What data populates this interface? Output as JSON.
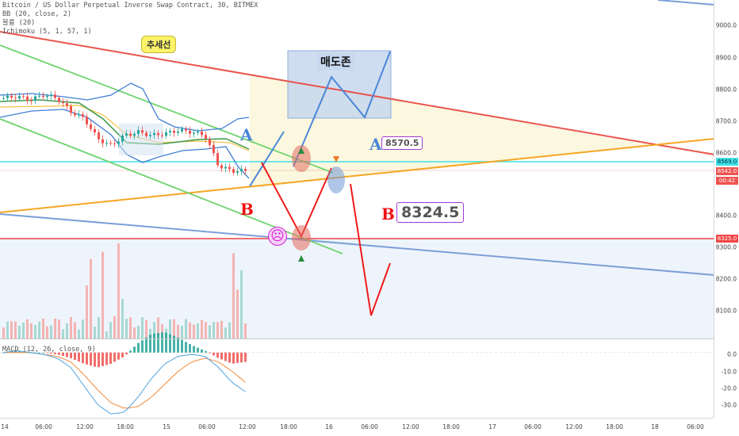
{
  "header": {
    "symbol_line": "Bitcoin / US Dollar Perpetual Inverse Swap Contract, 30, BITMEX",
    "bb_line": "BB (20, close, 2)",
    "volume_line": "볼륨 (20)",
    "ichimoku_line": "Ichimoku (5, 1, 57, 1)",
    "macd_line": "MACD (12, 26, close, 9)"
  },
  "annotations": {
    "trend_label": "추세선",
    "sell_zone_label": "매도존",
    "label_a_top": "A",
    "label_a_right": "A",
    "label_b_left": "B",
    "label_b_right": "B",
    "price_a": "8570.5",
    "price_b": "8324.5",
    "sad_face": "☹"
  },
  "price_axis": {
    "ticks": [
      "9000.0",
      "8900.0",
      "8800.0",
      "8700.0",
      "8600.0",
      "8400.0",
      "8300.0",
      "8200.0",
      "8100.0"
    ],
    "tags": {
      "cyan": "8569.0",
      "red_price": "8542.0",
      "countdown": "00:42",
      "support": "8325.0"
    }
  },
  "macd_axis": {
    "ticks": [
      "0.0",
      "-10.0",
      "-20.0",
      "-30.0"
    ]
  },
  "time_axis": {
    "ticks": [
      "14",
      "06:00",
      "12:00",
      "18:00",
      "15",
      "06:00",
      "12:00",
      "18:00",
      "16",
      "06:00",
      "12:00",
      "18:00",
      "17",
      "06:00",
      "12:00",
      "18:00",
      "18",
      "06:00"
    ]
  },
  "colors": {
    "trend_red": "#e8544a",
    "trend_orange": "#f5a623",
    "channel_green": "#6fd36f",
    "blue_line": "#7b9fd8",
    "bb": "#3f7fd6",
    "cyan": "#3fe0e6",
    "up_candle": "#26a69a",
    "down_candle": "#ef5350",
    "arrow_red": "#f21a1a",
    "arrow_blue": "#4a86d8",
    "macd_line": "#4fa3e0",
    "signal_line": "#f08a3a",
    "label_purple": "#a23ad6"
  },
  "chart_data": [
    {
      "type": "candlestick",
      "title": "Bitcoin / US Dollar Perpetual Inverse Swap Contract, 30, BITMEX",
      "x_ticks": [
        "14",
        "06:00",
        "12:00",
        "18:00",
        "15",
        "06:00",
        "12:00"
      ],
      "y_range": [
        8050,
        9050
      ],
      "approx_close_path": [
        8760,
        8765,
        8755,
        8770,
        8760,
        8720,
        8700,
        8640,
        8620,
        8650,
        8660,
        8650,
        8655,
        8665,
        8660,
        8650,
        8560,
        8545,
        8545
      ],
      "horizontal_levels": {
        "cyan": 8569,
        "current": 8542,
        "support": 8325
      },
      "callouts": {
        "A": 8570.5,
        "B": 8324.5
      }
    },
    {
      "type": "bar",
      "title": "볼륨 (20)",
      "note": "relative volume bars, taller toward the right"
    },
    {
      "type": "line",
      "title": "MACD (12, 26, close, 9)",
      "y_range": [
        -35,
        5
      ],
      "y_ticks": [
        0,
        -10,
        -20,
        -30
      ],
      "series": [
        {
          "name": "MACD",
          "values": [
            0,
            1,
            0,
            -1,
            -3,
            -8,
            -18,
            -28,
            -33,
            -32,
            -24,
            -14,
            -6,
            -2,
            -1,
            -2,
            -8,
            -16,
            -21
          ]
        },
        {
          "name": "Signal",
          "values": [
            0,
            0,
            0,
            -1,
            -2,
            -5,
            -12,
            -20,
            -27,
            -30,
            -29,
            -24,
            -17,
            -10,
            -5,
            -3,
            -5,
            -10,
            -16
          ]
        }
      ]
    }
  ]
}
